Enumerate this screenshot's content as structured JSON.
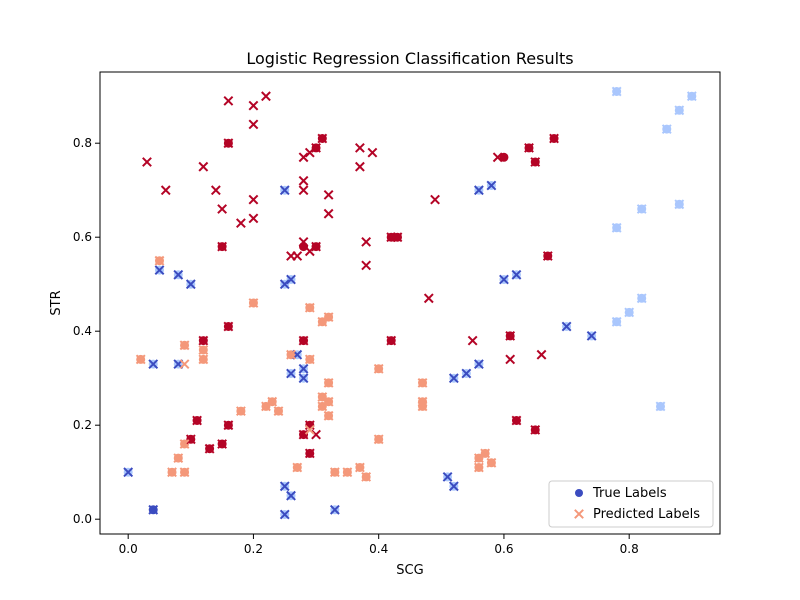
{
  "chart_data": {
    "type": "scatter",
    "title": "Logistic Regression Classification Results",
    "xlabel": "SCG",
    "ylabel": "STR",
    "xlim": [
      -0.045,
      0.945
    ],
    "ylim": [
      -0.0315,
      0.9515
    ],
    "xticks": [
      0.0,
      0.2,
      0.4,
      0.6,
      0.8
    ],
    "xtick_labels": [
      "0.0",
      "0.2",
      "0.4",
      "0.6",
      "0.8"
    ],
    "yticks": [
      0.0,
      0.2,
      0.4,
      0.6,
      0.8
    ],
    "ytick_labels": [
      "0.0",
      "0.2",
      "0.4",
      "0.6",
      "0.8"
    ],
    "grid": false,
    "legend_position": "lower-right",
    "colormap": {
      "0": "#3b4cc0",
      "1": "#aac7fd",
      "2": "#f4987a",
      "3": "#b40426"
    },
    "series": [
      {
        "name": "True Labels",
        "marker": "circle",
        "legend_color": "#3b4cc0",
        "points": [
          [
            0.0,
            0.1,
            1
          ],
          [
            0.04,
            0.02,
            0
          ],
          [
            0.04,
            0.33,
            1
          ],
          [
            0.05,
            0.53,
            1
          ],
          [
            0.08,
            0.52,
            1
          ],
          [
            0.08,
            0.33,
            1
          ],
          [
            0.1,
            0.5,
            1
          ],
          [
            0.25,
            0.7,
            1
          ],
          [
            0.25,
            0.5,
            1
          ],
          [
            0.25,
            0.07,
            1
          ],
          [
            0.25,
            0.01,
            1
          ],
          [
            0.26,
            0.51,
            1
          ],
          [
            0.26,
            0.31,
            1
          ],
          [
            0.26,
            0.05,
            1
          ],
          [
            0.27,
            0.35,
            1
          ],
          [
            0.28,
            0.32,
            1
          ],
          [
            0.28,
            0.3,
            1
          ],
          [
            0.33,
            0.02,
            1
          ],
          [
            0.51,
            0.09,
            1
          ],
          [
            0.52,
            0.3,
            1
          ],
          [
            0.52,
            0.07,
            1
          ],
          [
            0.54,
            0.31,
            1
          ],
          [
            0.56,
            0.7,
            1
          ],
          [
            0.56,
            0.33,
            1
          ],
          [
            0.58,
            0.71,
            1
          ],
          [
            0.6,
            0.51,
            1
          ],
          [
            0.62,
            0.52,
            1
          ],
          [
            0.7,
            0.41,
            1
          ],
          [
            0.74,
            0.39,
            1
          ],
          [
            0.78,
            0.91,
            1
          ],
          [
            0.78,
            0.62,
            1
          ],
          [
            0.78,
            0.42,
            1
          ],
          [
            0.8,
            0.44,
            1
          ],
          [
            0.82,
            0.66,
            1
          ],
          [
            0.82,
            0.47,
            1
          ],
          [
            0.85,
            0.24,
            1
          ],
          [
            0.86,
            0.83,
            1
          ],
          [
            0.88,
            0.87,
            1
          ],
          [
            0.88,
            0.67,
            1
          ],
          [
            0.9,
            0.9,
            1
          ],
          [
            0.15,
            0.58,
            3
          ],
          [
            0.16,
            0.8,
            3
          ],
          [
            0.16,
            0.41,
            3
          ],
          [
            0.1,
            0.17,
            3
          ],
          [
            0.11,
            0.21,
            3
          ],
          [
            0.13,
            0.15,
            3
          ],
          [
            0.15,
            0.16,
            3
          ],
          [
            0.16,
            0.2,
            3
          ],
          [
            0.12,
            0.38,
            3
          ],
          [
            0.28,
            0.58,
            3
          ],
          [
            0.28,
            0.38,
            3
          ],
          [
            0.28,
            0.18,
            3
          ],
          [
            0.29,
            0.2,
            3
          ],
          [
            0.29,
            0.14,
            3
          ],
          [
            0.3,
            0.58,
            3
          ],
          [
            0.3,
            0.79,
            3
          ],
          [
            0.31,
            0.81,
            3
          ],
          [
            0.42,
            0.38,
            3
          ],
          [
            0.42,
            0.6,
            3
          ],
          [
            0.43,
            0.6,
            3
          ],
          [
            0.6,
            0.77,
            3
          ],
          [
            0.61,
            0.39,
            3
          ],
          [
            0.62,
            0.21,
            3
          ],
          [
            0.64,
            0.79,
            3
          ],
          [
            0.65,
            0.76,
            3
          ],
          [
            0.65,
            0.19,
            3
          ],
          [
            0.67,
            0.56,
            3
          ],
          [
            0.68,
            0.81,
            3
          ],
          [
            0.05,
            0.55,
            2
          ],
          [
            0.02,
            0.34,
            2
          ],
          [
            0.09,
            0.37,
            2
          ],
          [
            0.12,
            0.36,
            2
          ],
          [
            0.12,
            0.34,
            2
          ],
          [
            0.08,
            0.13,
            2
          ],
          [
            0.09,
            0.16,
            2
          ],
          [
            0.07,
            0.1,
            2
          ],
          [
            0.09,
            0.1,
            2
          ],
          [
            0.2,
            0.46,
            2
          ],
          [
            0.18,
            0.23,
            2
          ],
          [
            0.23,
            0.25,
            2
          ],
          [
            0.22,
            0.24,
            2
          ],
          [
            0.24,
            0.23,
            2
          ],
          [
            0.26,
            0.35,
            2
          ],
          [
            0.27,
            0.11,
            2
          ],
          [
            0.29,
            0.45,
            2
          ],
          [
            0.29,
            0.34,
            2
          ],
          [
            0.31,
            0.42,
            2
          ],
          [
            0.32,
            0.43,
            2
          ],
          [
            0.32,
            0.29,
            2
          ],
          [
            0.31,
            0.26,
            2
          ],
          [
            0.31,
            0.24,
            2
          ],
          [
            0.32,
            0.25,
            2
          ],
          [
            0.32,
            0.22,
            2
          ],
          [
            0.33,
            0.1,
            2
          ],
          [
            0.35,
            0.1,
            2
          ],
          [
            0.37,
            0.11,
            2
          ],
          [
            0.38,
            0.09,
            2
          ],
          [
            0.4,
            0.32,
            2
          ],
          [
            0.4,
            0.17,
            2
          ],
          [
            0.47,
            0.29,
            2
          ],
          [
            0.47,
            0.25,
            2
          ],
          [
            0.47,
            0.24,
            2
          ],
          [
            0.56,
            0.13,
            2
          ],
          [
            0.56,
            0.11,
            2
          ],
          [
            0.57,
            0.14,
            2
          ],
          [
            0.58,
            0.12,
            2
          ]
        ]
      },
      {
        "name": "Predicted Labels",
        "marker": "x",
        "legend_color": "#f4987a",
        "points": [
          [
            0.0,
            0.1,
            0
          ],
          [
            0.04,
            0.02,
            0
          ],
          [
            0.04,
            0.33,
            0
          ],
          [
            0.05,
            0.53,
            0
          ],
          [
            0.08,
            0.52,
            0
          ],
          [
            0.08,
            0.33,
            0
          ],
          [
            0.1,
            0.5,
            0
          ],
          [
            0.25,
            0.7,
            0
          ],
          [
            0.25,
            0.5,
            0
          ],
          [
            0.25,
            0.07,
            0
          ],
          [
            0.25,
            0.01,
            0
          ],
          [
            0.26,
            0.51,
            0
          ],
          [
            0.26,
            0.31,
            0
          ],
          [
            0.26,
            0.05,
            0
          ],
          [
            0.27,
            0.35,
            0
          ],
          [
            0.28,
            0.32,
            0
          ],
          [
            0.28,
            0.3,
            0
          ],
          [
            0.33,
            0.02,
            0
          ],
          [
            0.51,
            0.09,
            0
          ],
          [
            0.52,
            0.3,
            0
          ],
          [
            0.52,
            0.07,
            0
          ],
          [
            0.54,
            0.31,
            0
          ],
          [
            0.56,
            0.7,
            0
          ],
          [
            0.56,
            0.33,
            0
          ],
          [
            0.58,
            0.71,
            0
          ],
          [
            0.6,
            0.51,
            0
          ],
          [
            0.62,
            0.52,
            0
          ],
          [
            0.7,
            0.41,
            0
          ],
          [
            0.74,
            0.39,
            0
          ],
          [
            0.78,
            0.91,
            1
          ],
          [
            0.78,
            0.62,
            1
          ],
          [
            0.78,
            0.42,
            1
          ],
          [
            0.8,
            0.44,
            1
          ],
          [
            0.82,
            0.66,
            1
          ],
          [
            0.82,
            0.47,
            1
          ],
          [
            0.85,
            0.24,
            1
          ],
          [
            0.86,
            0.83,
            1
          ],
          [
            0.88,
            0.87,
            1
          ],
          [
            0.88,
            0.67,
            1
          ],
          [
            0.9,
            0.9,
            1
          ],
          [
            0.03,
            0.76,
            3
          ],
          [
            0.06,
            0.7,
            3
          ],
          [
            0.12,
            0.75,
            3
          ],
          [
            0.14,
            0.7,
            3
          ],
          [
            0.15,
            0.66,
            3
          ],
          [
            0.16,
            0.89,
            3
          ],
          [
            0.16,
            0.8,
            3
          ],
          [
            0.15,
            0.58,
            3
          ],
          [
            0.18,
            0.63,
            3
          ],
          [
            0.2,
            0.88,
            3
          ],
          [
            0.2,
            0.84,
            3
          ],
          [
            0.2,
            0.68,
            3
          ],
          [
            0.2,
            0.64,
            3
          ],
          [
            0.22,
            0.9,
            3
          ],
          [
            0.26,
            0.56,
            3
          ],
          [
            0.27,
            0.56,
            3
          ],
          [
            0.28,
            0.77,
            3
          ],
          [
            0.28,
            0.72,
            3
          ],
          [
            0.28,
            0.7,
            3
          ],
          [
            0.28,
            0.59,
            3
          ],
          [
            0.29,
            0.78,
            3
          ],
          [
            0.29,
            0.57,
            3
          ],
          [
            0.3,
            0.79,
            3
          ],
          [
            0.3,
            0.58,
            3
          ],
          [
            0.31,
            0.81,
            3
          ],
          [
            0.32,
            0.69,
            3
          ],
          [
            0.32,
            0.65,
            3
          ],
          [
            0.37,
            0.79,
            3
          ],
          [
            0.37,
            0.75,
            3
          ],
          [
            0.38,
            0.59,
            3
          ],
          [
            0.38,
            0.54,
            3
          ],
          [
            0.39,
            0.78,
            3
          ],
          [
            0.42,
            0.6,
            3
          ],
          [
            0.43,
            0.6,
            3
          ],
          [
            0.48,
            0.47,
            3
          ],
          [
            0.49,
            0.68,
            3
          ],
          [
            0.55,
            0.38,
            3
          ],
          [
            0.59,
            0.77,
            3
          ],
          [
            0.61,
            0.34,
            3
          ],
          [
            0.64,
            0.79,
            3
          ],
          [
            0.65,
            0.76,
            3
          ],
          [
            0.66,
            0.35,
            3
          ],
          [
            0.67,
            0.56,
            3
          ],
          [
            0.68,
            0.81,
            3
          ],
          [
            0.1,
            0.17,
            3
          ],
          [
            0.11,
            0.21,
            3
          ],
          [
            0.13,
            0.15,
            3
          ],
          [
            0.15,
            0.16,
            3
          ],
          [
            0.16,
            0.2,
            3
          ],
          [
            0.12,
            0.38,
            3
          ],
          [
            0.16,
            0.41,
            3
          ],
          [
            0.28,
            0.38,
            3
          ],
          [
            0.28,
            0.18,
            3
          ],
          [
            0.29,
            0.2,
            3
          ],
          [
            0.29,
            0.14,
            3
          ],
          [
            0.3,
            0.18,
            3
          ],
          [
            0.42,
            0.38,
            3
          ],
          [
            0.61,
            0.39,
            3
          ],
          [
            0.62,
            0.21,
            3
          ],
          [
            0.65,
            0.19,
            3
          ],
          [
            0.05,
            0.55,
            2
          ],
          [
            0.02,
            0.34,
            2
          ],
          [
            0.09,
            0.37,
            2
          ],
          [
            0.09,
            0.33,
            2
          ],
          [
            0.12,
            0.36,
            2
          ],
          [
            0.12,
            0.34,
            2
          ],
          [
            0.08,
            0.13,
            2
          ],
          [
            0.09,
            0.16,
            2
          ],
          [
            0.07,
            0.1,
            2
          ],
          [
            0.09,
            0.1,
            2
          ],
          [
            0.2,
            0.46,
            2
          ],
          [
            0.18,
            0.23,
            2
          ],
          [
            0.23,
            0.25,
            2
          ],
          [
            0.22,
            0.24,
            2
          ],
          [
            0.24,
            0.23,
            2
          ],
          [
            0.26,
            0.35,
            2
          ],
          [
            0.27,
            0.11,
            2
          ],
          [
            0.29,
            0.45,
            2
          ],
          [
            0.29,
            0.34,
            2
          ],
          [
            0.29,
            0.19,
            2
          ],
          [
            0.31,
            0.42,
            2
          ],
          [
            0.32,
            0.43,
            2
          ],
          [
            0.32,
            0.29,
            2
          ],
          [
            0.31,
            0.26,
            2
          ],
          [
            0.31,
            0.24,
            2
          ],
          [
            0.32,
            0.25,
            2
          ],
          [
            0.32,
            0.22,
            2
          ],
          [
            0.33,
            0.1,
            2
          ],
          [
            0.35,
            0.1,
            2
          ],
          [
            0.37,
            0.11,
            2
          ],
          [
            0.38,
            0.09,
            2
          ],
          [
            0.4,
            0.32,
            2
          ],
          [
            0.4,
            0.17,
            2
          ],
          [
            0.47,
            0.29,
            2
          ],
          [
            0.47,
            0.25,
            2
          ],
          [
            0.47,
            0.24,
            2
          ],
          [
            0.56,
            0.13,
            2
          ],
          [
            0.56,
            0.11,
            2
          ],
          [
            0.57,
            0.14,
            2
          ],
          [
            0.58,
            0.12,
            2
          ]
        ]
      }
    ]
  }
}
